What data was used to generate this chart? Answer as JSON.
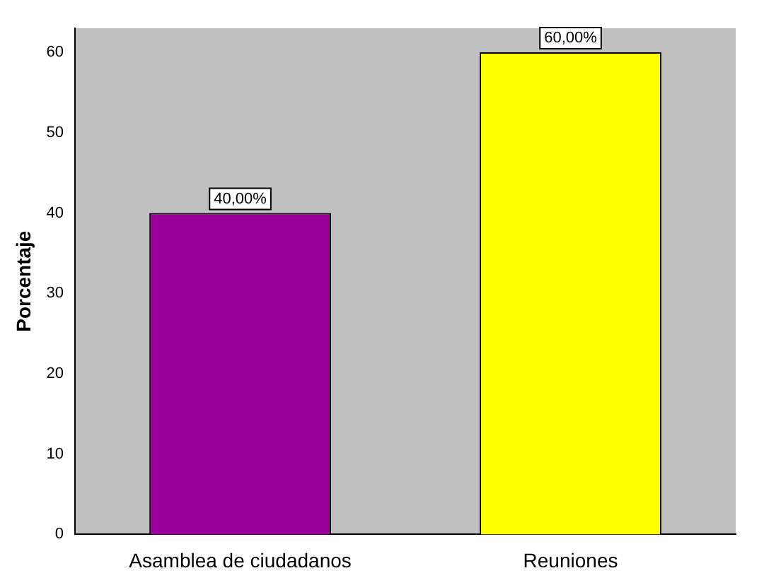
{
  "chart_data": {
    "type": "bar",
    "ylabel": "Porcentaje",
    "categories": [
      "Asamblea de ciudadanos",
      "Reuniones"
    ],
    "values": [
      40,
      60
    ],
    "colors": [
      "#990099",
      "#ffff00"
    ],
    "value_labels": [
      "40,00%",
      "60,00%"
    ],
    "ylim": [
      0,
      63
    ],
    "yticks": [
      0,
      10,
      20,
      30,
      40,
      50,
      60
    ],
    "grid": false,
    "legend": false
  }
}
